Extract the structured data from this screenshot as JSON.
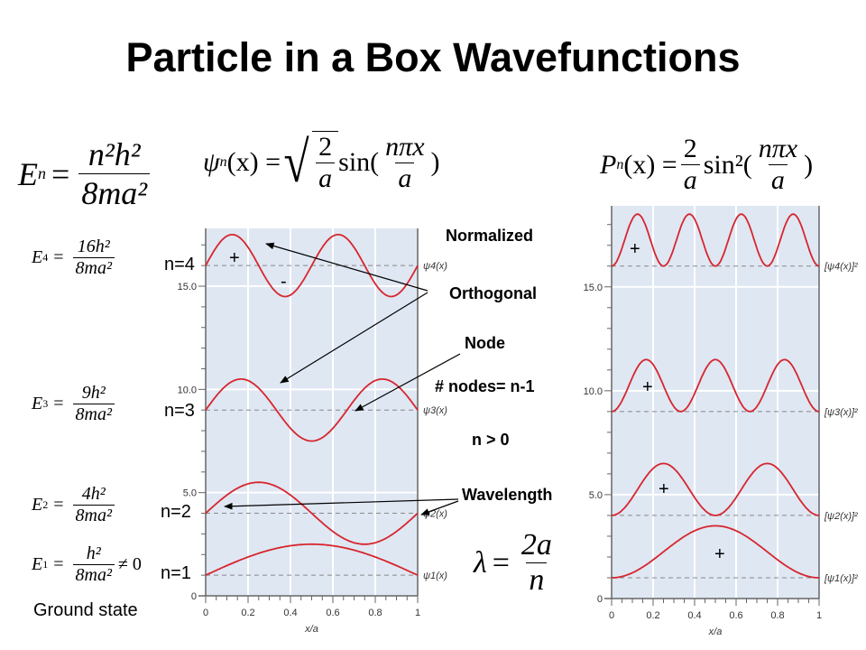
{
  "title": "Particle in a Box Wavefunctions",
  "equations": {
    "energy": {
      "lhs": "E",
      "lhs_sub": "n",
      "num": "n²h²",
      "den": "8ma²"
    },
    "wavefunction": {
      "lhs": "ψ",
      "lhs_sub": "n",
      "arg": "(x) =",
      "sqrt_num": "2",
      "sqrt_den": "a",
      "func": "sin(",
      "num": "nπx",
      "den": "a",
      "close": ")"
    },
    "probability": {
      "lhs": "P",
      "lhs_sub": "n",
      "arg": "(x) =",
      "num": "2",
      "den": "a",
      "func": "sin²(",
      "num2": "nπx",
      "den2": "a",
      "close": ")"
    },
    "levels": [
      {
        "lhs": "E",
        "sub": "4",
        "num": "16h²",
        "den": "8ma²",
        "suffix": ""
      },
      {
        "lhs": "E",
        "sub": "3",
        "num": "9h²",
        "den": "8ma²",
        "suffix": ""
      },
      {
        "lhs": "E",
        "sub": "2",
        "num": "4h²",
        "den": "8ma²",
        "suffix": ""
      },
      {
        "lhs": "E",
        "sub": "1",
        "num": "h²",
        "den": "8ma²",
        "suffix": "≠ 0"
      }
    ],
    "wavelength": {
      "lhs": "λ",
      "num": "2a",
      "den": "n"
    }
  },
  "ground_state": "Ground state",
  "n_labels": [
    "n=4",
    "n=3",
    "n=2",
    "n=1"
  ],
  "annotations": {
    "normalized": "Normalized",
    "orthogonal": "Orthogonal",
    "node": "Node",
    "nodes_count": "# nodes= n-1",
    "n_positive": "n > 0",
    "wavelength": "Wavelength"
  },
  "sign_marks": {
    "left": [
      "+",
      "-"
    ],
    "right": [
      "+",
      "+",
      "+",
      "+"
    ]
  },
  "chart_data": [
    {
      "type": "line",
      "xlabel": "x/a",
      "xlim": [
        0,
        1
      ],
      "xticks": [
        "0",
        "0.2",
        "0.4",
        "0.6",
        "0.8",
        "1"
      ],
      "ylim": [
        0,
        17.8
      ],
      "yticks": [
        "0",
        "5.0",
        "10.0",
        "15.0"
      ],
      "grid": true,
      "curve": "baseline + 1.5·sin(nπx/a)",
      "series": [
        {
          "name": "ψ1(x)",
          "n": 1,
          "baseline": 1,
          "amplitude": 1.5
        },
        {
          "name": "ψ2(x)",
          "n": 2,
          "baseline": 4,
          "amplitude": 1.5
        },
        {
          "name": "ψ3(x)",
          "n": 3,
          "baseline": 9,
          "amplitude": 1.5
        },
        {
          "name": "ψ4(x)",
          "n": 4,
          "baseline": 16,
          "amplitude": 1.5
        }
      ]
    },
    {
      "type": "line",
      "xlabel": "x/a",
      "xlim": [
        0,
        1
      ],
      "xticks": [
        "0",
        "0.2",
        "0.4",
        "0.6",
        "0.8",
        "1"
      ],
      "ylim": [
        0,
        18.9
      ],
      "yticks": [
        "0",
        "5.0",
        "10.0",
        "15.0"
      ],
      "grid": true,
      "curve": "baseline + 2.5·sin²(nπx/a)",
      "series": [
        {
          "name": "[ψ1(x)]²",
          "n": 1,
          "baseline": 1,
          "amplitude": 2.5
        },
        {
          "name": "[ψ2(x)]²",
          "n": 2,
          "baseline": 4,
          "amplitude": 2.5
        },
        {
          "name": "[ψ3(x)]²",
          "n": 3,
          "baseline": 9,
          "amplitude": 2.5
        },
        {
          "name": "[ψ4(x)]²",
          "n": 4,
          "baseline": 16,
          "amplitude": 2.5
        }
      ]
    }
  ],
  "colors": {
    "curve": "#d7262e",
    "plot_bg": "#dfe7f3",
    "grid": "#ffffff",
    "axis": "#666666"
  }
}
